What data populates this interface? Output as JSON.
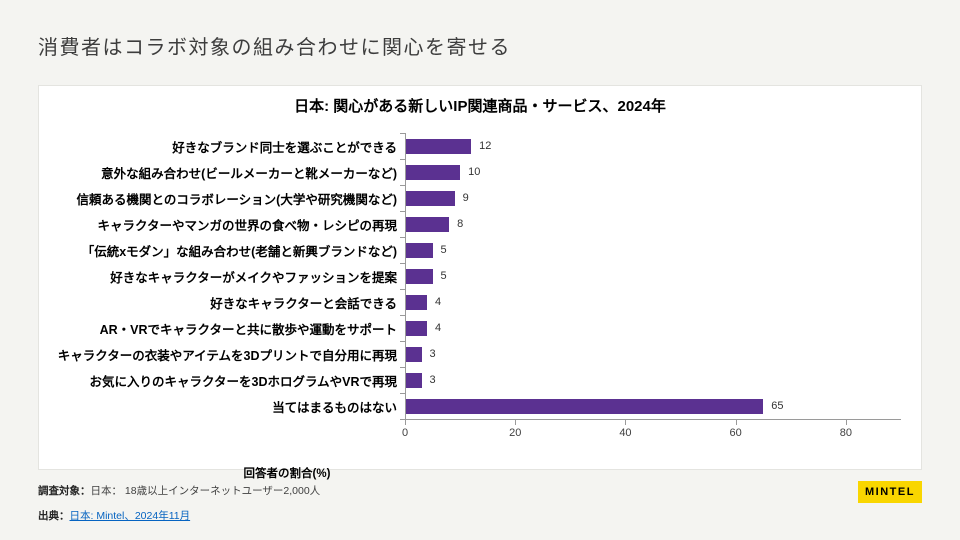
{
  "page": {
    "title": "消費者はコラボ対象の組み合わせに関心を寄せる"
  },
  "chart_data": {
    "type": "bar",
    "orientation": "horizontal",
    "title": "日本: 関心がある新しいIP関連商品・サービス、2024年",
    "categories": [
      "好きなブランド同士を選ぶことができる",
      "意外な組み合わせ(ビールメーカーと靴メーカーなど)",
      "信頼ある機関とのコラボレーション(大学や研究機関など)",
      "キャラクターやマンガの世界の食べ物・レシピの再現",
      "「伝統xモダン」な組み合わせ(老舗と新興ブランドなど)",
      "好きなキャラクターがメイクやファッションを提案",
      "好きなキャラクターと会話できる",
      "AR・VRでキャラクターと共に散歩や運動をサポート",
      "キャラクターの衣装やアイテムを3Dプリントで自分用に再現",
      "お気に入りのキャラクターを3DホログラムやVRで再現",
      "当てはまるものはない"
    ],
    "values": [
      12,
      10,
      9,
      8,
      5,
      5,
      4,
      4,
      3,
      3,
      65
    ],
    "xlabel": "回答者の割合(%)",
    "x_ticks": [
      0,
      20,
      40,
      60,
      80
    ],
    "xlim": [
      0,
      90
    ],
    "grid": false,
    "legend": null,
    "bar_color": "#5b3191"
  },
  "footer": {
    "survey_label": "調査対象：",
    "survey_text": "日本： 18歳以上インターネットユーザー2,000人",
    "source_label": "出典：",
    "source_link_text": "日本: Mintel、2024年11月",
    "link_color": "#0563c1"
  },
  "logo": {
    "text": "MINTEL",
    "bg_color": "#f9d600",
    "text_color": "#000000"
  }
}
